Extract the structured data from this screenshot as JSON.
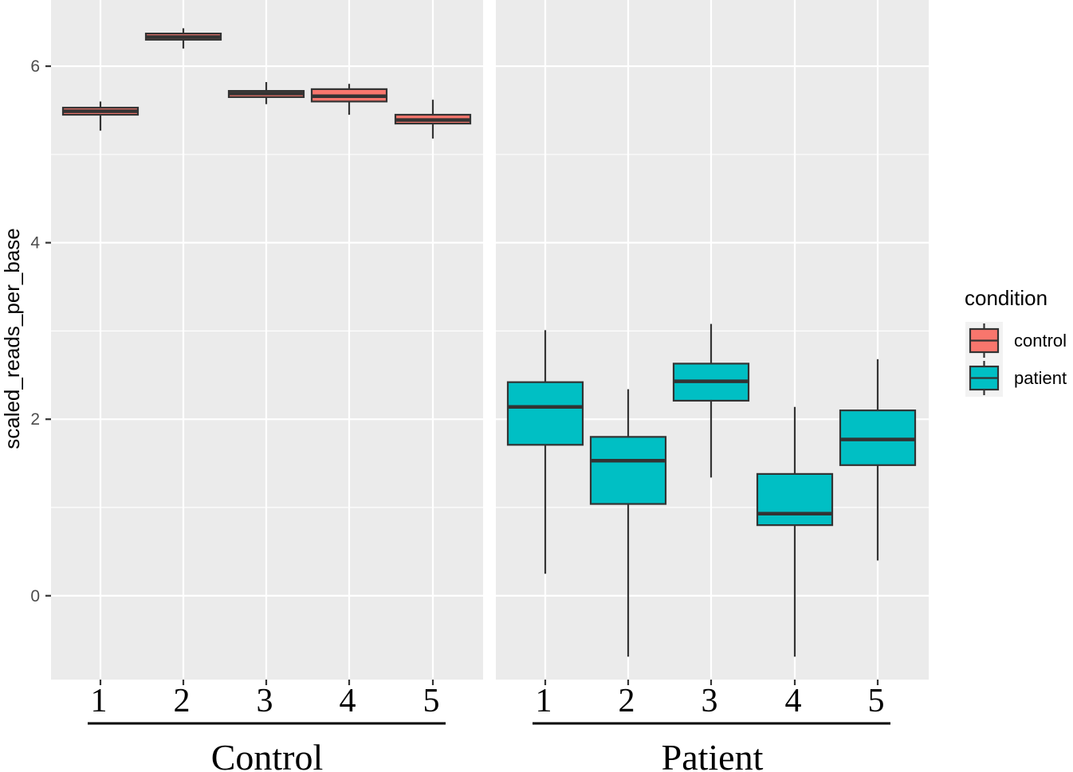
{
  "chart_data": {
    "type": "boxplot",
    "ylabel": "scaled_reads_per_base",
    "ylim": [
      -0.95,
      6.75
    ],
    "y_ticks": [
      "0",
      "2",
      "4",
      "6"
    ],
    "y_tick_values": [
      0,
      2,
      4,
      6
    ],
    "legend": {
      "title": "condition",
      "position": "right",
      "items": [
        {
          "label": "control",
          "color": "#F8766D"
        },
        {
          "label": "patient",
          "color": "#00BFC4"
        }
      ]
    },
    "facets": [
      {
        "name": "Control",
        "categories": [
          "1",
          "2",
          "3",
          "4",
          "5"
        ],
        "series": [
          {
            "condition": "control",
            "category": "1",
            "min": 5.27,
            "q1": 5.45,
            "median": 5.49,
            "q3": 5.53,
            "max": 5.6
          },
          {
            "condition": "control",
            "category": "2",
            "min": 6.2,
            "q1": 6.3,
            "median": 6.33,
            "q3": 6.37,
            "max": 6.43
          },
          {
            "condition": "control",
            "category": "3",
            "min": 5.57,
            "q1": 5.65,
            "median": 5.69,
            "q3": 5.72,
            "max": 5.82
          },
          {
            "condition": "control",
            "category": "4",
            "min": 5.45,
            "q1": 5.6,
            "median": 5.66,
            "q3": 5.74,
            "max": 5.8
          },
          {
            "condition": "control",
            "category": "5",
            "min": 5.18,
            "q1": 5.35,
            "median": 5.39,
            "q3": 5.45,
            "max": 5.62
          }
        ]
      },
      {
        "name": "Patient",
        "categories": [
          "1",
          "2",
          "3",
          "4",
          "5"
        ],
        "series": [
          {
            "condition": "patient",
            "category": "1",
            "min": 0.25,
            "q1": 1.71,
            "median": 2.14,
            "q3": 2.42,
            "max": 3.01
          },
          {
            "condition": "patient",
            "category": "2",
            "min": -0.69,
            "q1": 1.04,
            "median": 1.53,
            "q3": 1.8,
            "max": 2.34
          },
          {
            "condition": "patient",
            "category": "3",
            "min": 1.34,
            "q1": 2.21,
            "median": 2.43,
            "q3": 2.63,
            "max": 3.08
          },
          {
            "condition": "patient",
            "category": "4",
            "min": -0.69,
            "q1": 0.8,
            "median": 0.93,
            "q3": 1.38,
            "max": 2.14
          },
          {
            "condition": "patient",
            "category": "5",
            "min": 0.4,
            "q1": 1.48,
            "median": 1.77,
            "q3": 2.1,
            "max": 2.68
          }
        ]
      }
    ]
  }
}
